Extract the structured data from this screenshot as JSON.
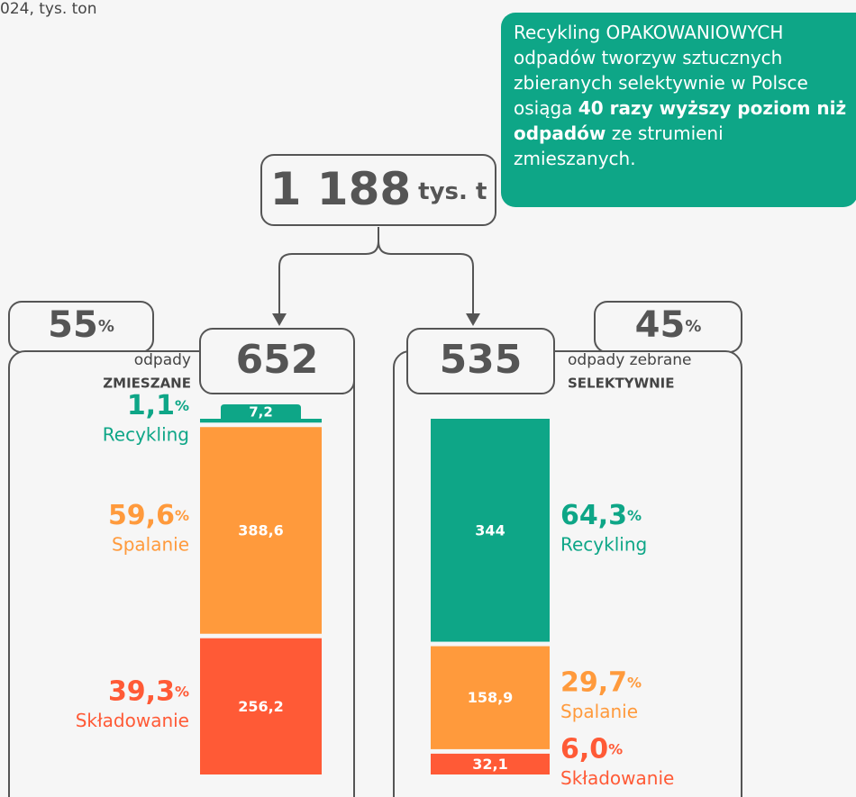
{
  "subtitle": "024, tys. ton",
  "callout": [
    "Recykling OPAKOWANIOWYCH odpadów tworzyw sztucznych zbieranych selektywnie w Polsce osiąga ",
    "40 razy wyższy poziom niż odpadów",
    " ze strumieni zmieszanych."
  ],
  "total": {
    "value": 1188,
    "label": "1 188",
    "unit": "tys. t"
  },
  "chart_data": {
    "type": "stacked_bar",
    "unit": "%",
    "groups": [
      {
        "share": 55,
        "total": 652,
        "label": [
          "odpady",
          "ZMIESZANE"
        ],
        "segments": [
          {
            "name": "Recykling",
            "value": 7.2,
            "value_label": "7,2",
            "percent": 1.1,
            "percent_label": "1,1",
            "color": "#0ea687"
          },
          {
            "name": "Spalanie",
            "value": 388.6,
            "value_label": "388,6",
            "percent": 59.6,
            "percent_label": "59,6",
            "color": "#ff9a3c"
          },
          {
            "name": "Składowanie",
            "value": 256.2,
            "value_label": "256,2",
            "percent": 39.3,
            "percent_label": "39,3",
            "color": "#ff5a36"
          }
        ]
      },
      {
        "share": 45,
        "total": 535,
        "label": [
          "odpady zebrane",
          "SELEKTYWNIE"
        ],
        "segments": [
          {
            "name": "Recykling",
            "value": 344,
            "value_label": "344",
            "percent": 64.3,
            "percent_label": "64,3",
            "color": "#0ea687"
          },
          {
            "name": "Spalanie",
            "value": 158.9,
            "value_label": "158,9",
            "percent": 29.7,
            "percent_label": "29,7",
            "color": "#ff9a3c"
          },
          {
            "name": "Składowanie",
            "value": 32.1,
            "value_label": "32,1",
            "percent": 6.0,
            "percent_label": "6,0",
            "color": "#ff5a36"
          }
        ]
      }
    ]
  }
}
